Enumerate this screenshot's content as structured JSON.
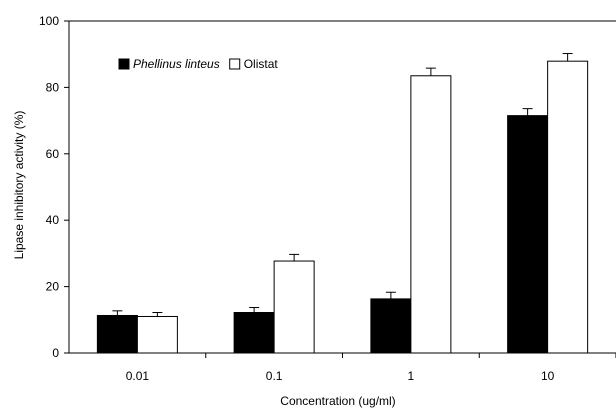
{
  "chart_data": {
    "type": "bar",
    "title": "",
    "xlabel": "Concentration (ug/ml)",
    "ylabel": "Lipase inhibitory activity (%)",
    "categories": [
      "0.01",
      "0.1",
      "1",
      "10"
    ],
    "ylim": [
      0,
      100
    ],
    "yticks": [
      0,
      20,
      40,
      60,
      80,
      100
    ],
    "grid": false,
    "legend_position": "top-left",
    "series": [
      {
        "name": "Phellinus linteus",
        "name_italic": true,
        "color": "#000000",
        "values": [
          11.3,
          12.2,
          16.3,
          71.5
        ],
        "errors": [
          1.4,
          1.5,
          2.0,
          2.1
        ]
      },
      {
        "name": "Olistat",
        "name_italic": false,
        "color": "#ffffff",
        "values": [
          11.0,
          27.7,
          83.5,
          87.9
        ],
        "errors": [
          1.2,
          2.0,
          2.3,
          2.3
        ]
      }
    ]
  }
}
